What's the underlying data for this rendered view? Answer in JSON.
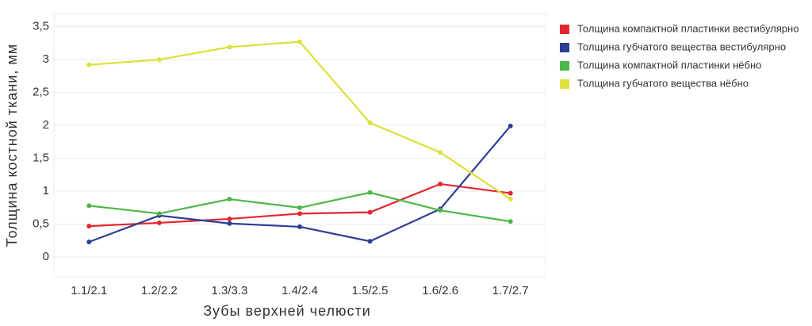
{
  "chart_data": {
    "type": "line",
    "x_label": "Зубы верхней челюсти",
    "y_label": "Толщина костной ткани, мм",
    "categories": [
      "1.1/2.1",
      "1.2/2.2",
      "1.3/3.3",
      "1.4/2.4",
      "1.5/2.5",
      "1.6/2.6",
      "1.7/2.7"
    ],
    "series": [
      {
        "name": "Толщина компактной пластинки вестибулярно",
        "color": "#e3262f",
        "values": [
          0.47,
          0.52,
          0.58,
          0.66,
          0.68,
          1.11,
          0.97
        ]
      },
      {
        "name": "Толщина губчатого вещества вестибулярно",
        "color": "#2e3e94",
        "values": [
          0.23,
          0.63,
          0.51,
          0.46,
          0.24,
          0.73,
          1.99
        ]
      },
      {
        "name": "Толщина компактной пластинки нёбно",
        "color": "#4cb748",
        "values": [
          0.78,
          0.66,
          0.88,
          0.75,
          0.98,
          0.71,
          0.54
        ]
      },
      {
        "name": "Толщина губчатого вещества нёбно",
        "color": "#dde03a",
        "values": [
          2.92,
          3.0,
          3.19,
          3.27,
          2.04,
          1.59,
          0.88
        ]
      }
    ],
    "ylim": [
      -0.3,
      3.7
    ],
    "yticks": [
      0,
      {
        "value": 0.5,
        "label": "0,5"
      },
      1,
      {
        "value": 1.5,
        "label": "1,5"
      },
      2,
      {
        "value": 2.5,
        "label": "2,5"
      },
      3,
      {
        "value": 3.5,
        "label": "3,5"
      }
    ],
    "grid": true
  }
}
